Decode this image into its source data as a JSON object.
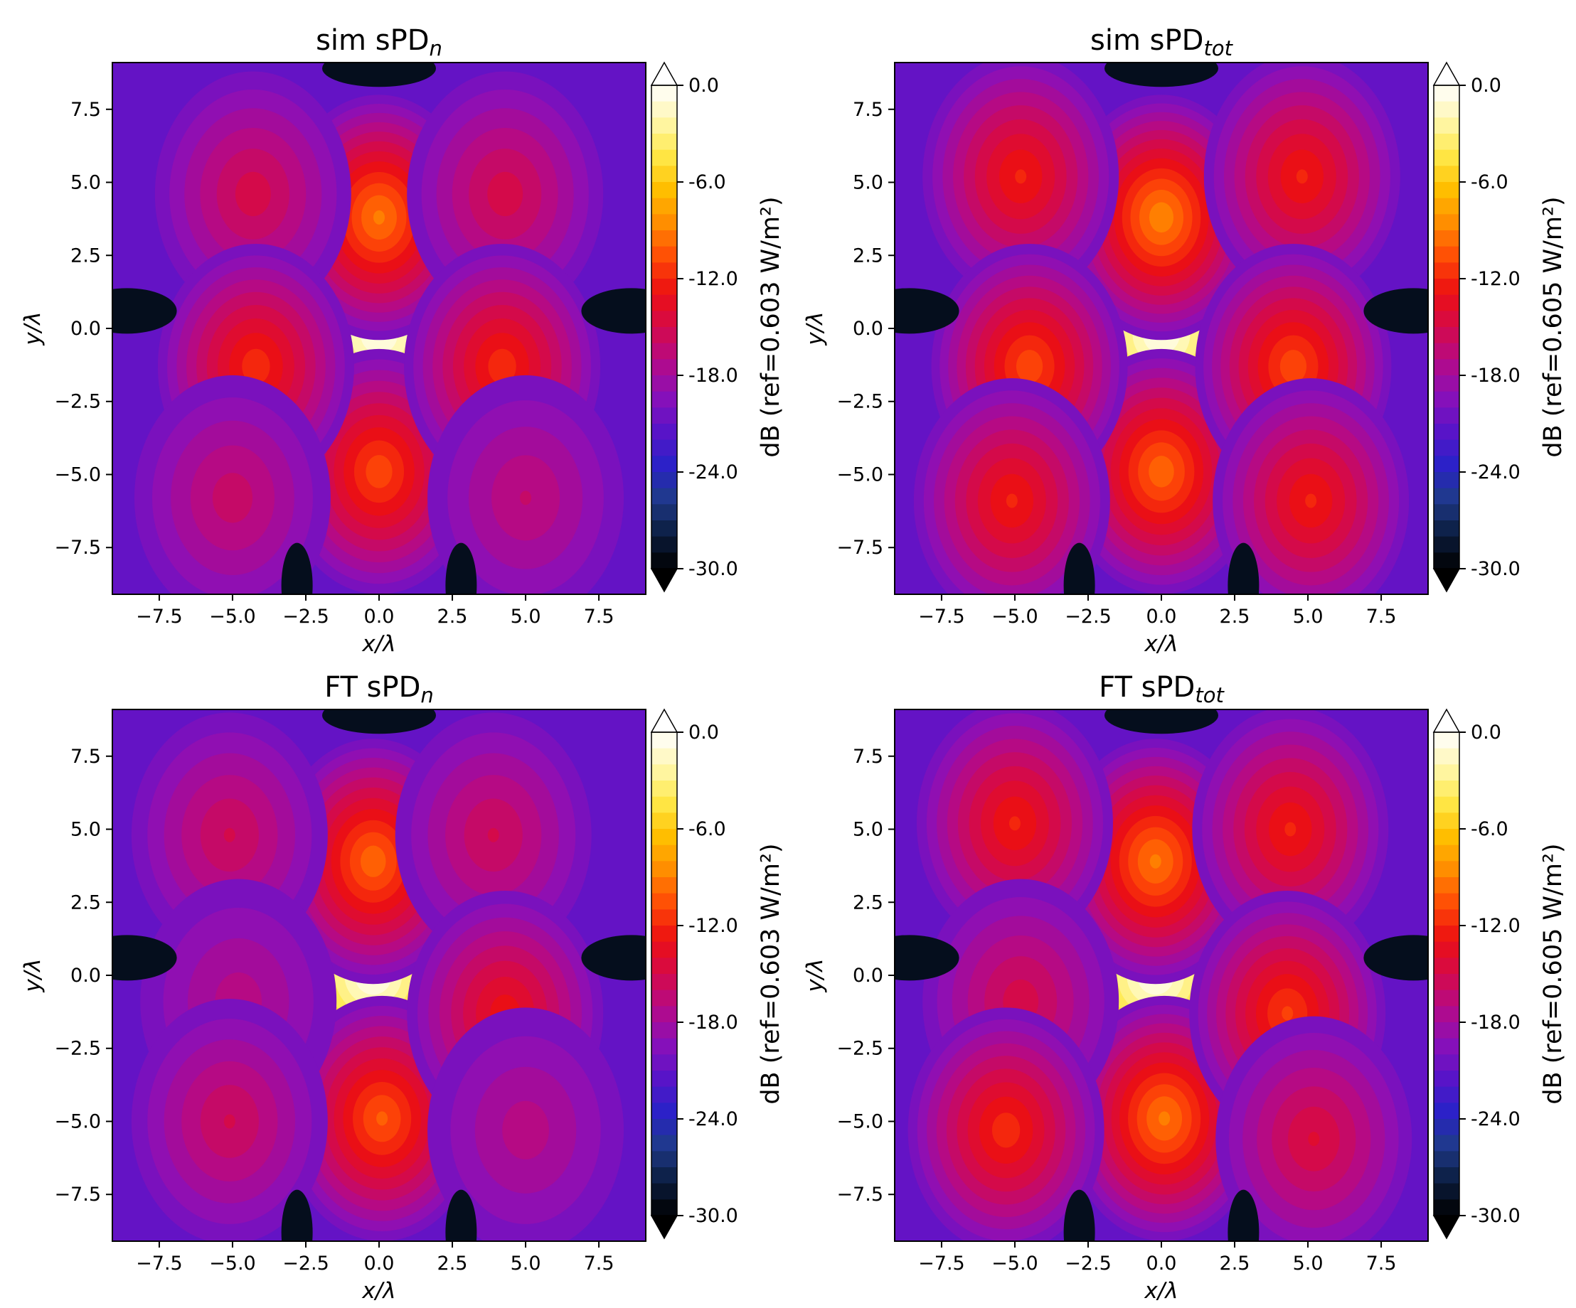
{
  "colors": {
    "colormap": [
      "#000000",
      "#0b1d3f",
      "#1f3a8a",
      "#2a21c8",
      "#5a14c8",
      "#8a10b8",
      "#b40a88",
      "#d40a4a",
      "#ec0f12",
      "#ff4a06",
      "#ff8c00",
      "#ffc000",
      "#ffe94a",
      "#fff7b0",
      "#ffffff"
    ],
    "axes_frame": "#000000"
  },
  "chart_data": [
    {
      "type": "heatmap",
      "title_main": "sim  sPD",
      "title_sub": "n",
      "xlabel": "x/λ",
      "ylabel": "y/λ",
      "xlim": [
        -9.1,
        9.1
      ],
      "ylim": [
        -9.1,
        9.1
      ],
      "xticks": [
        -7.5,
        -5.0,
        -2.5,
        0.0,
        2.5,
        5.0,
        7.5
      ],
      "xtick_labels": [
        "−7.5",
        "−5.0",
        "−2.5",
        "0.0",
        "2.5",
        "5.0",
        "7.5"
      ],
      "yticks": [
        7.5,
        5.0,
        2.5,
        0.0,
        -2.5,
        -5.0,
        -7.5
      ],
      "ytick_labels": [
        "7.5",
        "5.0",
        "2.5",
        "0.0",
        "−2.5",
        "−5.0",
        "−7.5"
      ],
      "colorbar": {
        "label": "dB (ref=0.603 W/m²)",
        "range": [
          -30,
          0
        ],
        "ticks": [
          "0.0",
          "-6.0",
          "-12.0",
          "-18.0",
          "-24.0",
          "-30.0"
        ],
        "extend": "both"
      },
      "features": [
        {
          "x": 0.0,
          "y": -0.2,
          "db": 0.0
        },
        {
          "x": 0.0,
          "y": 3.8,
          "db": -9.0
        },
        {
          "x": 0.0,
          "y": -4.9,
          "db": -10.5
        },
        {
          "x": -4.3,
          "y": 4.6,
          "db": -14.5
        },
        {
          "x": 4.3,
          "y": 4.6,
          "db": -14.5
        },
        {
          "x": -4.2,
          "y": -1.3,
          "db": -11.5
        },
        {
          "x": 4.2,
          "y": -1.3,
          "db": -11.5
        },
        {
          "x": -5.0,
          "y": -5.8,
          "db": -15.5
        },
        {
          "x": 5.0,
          "y": -5.8,
          "db": -16.0
        },
        {
          "x": -2.2,
          "y": 3.1,
          "db": -23.0
        },
        {
          "x": 2.2,
          "y": 3.1,
          "db": -23.0
        }
      ]
    },
    {
      "type": "heatmap",
      "title_main": "sim  sPD",
      "title_sub": "tot",
      "xlabel": "x/λ",
      "ylabel": "y/λ",
      "xlim": [
        -9.1,
        9.1
      ],
      "ylim": [
        -9.1,
        9.1
      ],
      "xticks": [
        -7.5,
        -5.0,
        -2.5,
        0.0,
        2.5,
        5.0,
        7.5
      ],
      "xtick_labels": [
        "−7.5",
        "−5.0",
        "−2.5",
        "0.0",
        "2.5",
        "5.0",
        "7.5"
      ],
      "yticks": [
        7.5,
        5.0,
        2.5,
        0.0,
        -2.5,
        -5.0,
        -7.5
      ],
      "ytick_labels": [
        "7.5",
        "5.0",
        "2.5",
        "0.0",
        "−2.5",
        "−5.0",
        "−7.5"
      ],
      "colorbar": {
        "label": "dB (ref=0.605 W/m²)",
        "range": [
          -30,
          0
        ],
        "ticks": [
          "0.0",
          "-6.0",
          "-12.0",
          "-18.0",
          "-24.0",
          "-30.0"
        ],
        "extend": "both"
      },
      "features": [
        {
          "x": 0.0,
          "y": -0.2,
          "db": 0.0
        },
        {
          "x": 0.0,
          "y": 3.8,
          "db": -8.5
        },
        {
          "x": 0.0,
          "y": -4.9,
          "db": -9.5
        },
        {
          "x": -4.8,
          "y": 5.2,
          "db": -12.0
        },
        {
          "x": 4.8,
          "y": 5.2,
          "db": -12.0
        },
        {
          "x": -4.5,
          "y": -1.3,
          "db": -10.5
        },
        {
          "x": 4.5,
          "y": -1.3,
          "db": -10.5
        },
        {
          "x": -5.1,
          "y": -5.9,
          "db": -12.0
        },
        {
          "x": 5.1,
          "y": -5.9,
          "db": -12.0
        },
        {
          "x": -2.2,
          "y": 3.1,
          "db": -22.0
        },
        {
          "x": 2.2,
          "y": 3.1,
          "db": -22.0
        }
      ]
    },
    {
      "type": "heatmap",
      "title_main": "FT  sPD",
      "title_sub": "n",
      "xlabel": "x/λ",
      "ylabel": "y/λ",
      "xlim": [
        -9.1,
        9.1
      ],
      "ylim": [
        -9.1,
        9.1
      ],
      "xticks": [
        -7.5,
        -5.0,
        -2.5,
        0.0,
        2.5,
        5.0,
        7.5
      ],
      "xtick_labels": [
        "−7.5",
        "−5.0",
        "−2.5",
        "0.0",
        "2.5",
        "5.0",
        "7.5"
      ],
      "yticks": [
        7.5,
        5.0,
        2.5,
        0.0,
        -2.5,
        -5.0,
        -7.5
      ],
      "ytick_labels": [
        "7.5",
        "5.0",
        "2.5",
        "0.0",
        "−2.5",
        "−5.0",
        "−7.5"
      ],
      "colorbar": {
        "label": "dB (ref=0.603 W/m²)",
        "range": [
          -30,
          0
        ],
        "ticks": [
          "0.0",
          "-6.0",
          "-12.0",
          "-18.0",
          "-24.0",
          "-30.0"
        ],
        "extend": "both"
      },
      "features": [
        {
          "x": -0.2,
          "y": 0.0,
          "db": 0.0
        },
        {
          "x": -0.2,
          "y": 3.9,
          "db": -9.5
        },
        {
          "x": 0.1,
          "y": -4.9,
          "db": -10.0
        },
        {
          "x": -5.1,
          "y": 4.8,
          "db": -15.0
        },
        {
          "x": 3.9,
          "y": 4.8,
          "db": -15.0
        },
        {
          "x": -4.8,
          "y": -0.9,
          "db": -16.5
        },
        {
          "x": 4.3,
          "y": -1.3,
          "db": -12.5
        },
        {
          "x": -5.1,
          "y": -5.0,
          "db": -15.0
        },
        {
          "x": 5.0,
          "y": -5.3,
          "db": -16.5
        },
        {
          "x": -2.7,
          "y": 3.2,
          "db": -23.0
        },
        {
          "x": 2.0,
          "y": 3.0,
          "db": -23.0
        }
      ]
    },
    {
      "type": "heatmap",
      "title_main": "FT  sPD",
      "title_sub": "tot",
      "xlabel": "x/λ",
      "ylabel": "y/λ",
      "xlim": [
        -9.1,
        9.1
      ],
      "ylim": [
        -9.1,
        9.1
      ],
      "xticks": [
        -7.5,
        -5.0,
        -2.5,
        0.0,
        2.5,
        5.0,
        7.5
      ],
      "xtick_labels": [
        "−7.5",
        "−5.0",
        "−2.5",
        "0.0",
        "2.5",
        "5.0",
        "7.5"
      ],
      "yticks": [
        7.5,
        5.0,
        2.5,
        0.0,
        -2.5,
        -5.0,
        -7.5
      ],
      "ytick_labels": [
        "7.5",
        "5.0",
        "2.5",
        "0.0",
        "−2.5",
        "−5.0",
        "−7.5"
      ],
      "colorbar": {
        "label": "dB (ref=0.605 W/m²)",
        "range": [
          -30,
          0
        ],
        "ticks": [
          "0.0",
          "-6.0",
          "-12.0",
          "-18.0",
          "-24.0",
          "-30.0"
        ],
        "extend": "both"
      },
      "features": [
        {
          "x": -0.2,
          "y": 0.0,
          "db": 0.0
        },
        {
          "x": -0.2,
          "y": 3.9,
          "db": -9.0
        },
        {
          "x": 0.1,
          "y": -4.9,
          "db": -9.0
        },
        {
          "x": -5.0,
          "y": 5.2,
          "db": -12.0
        },
        {
          "x": 4.4,
          "y": 5.0,
          "db": -12.0
        },
        {
          "x": -4.8,
          "y": -0.9,
          "db": -14.5
        },
        {
          "x": 4.3,
          "y": -1.3,
          "db": -11.0
        },
        {
          "x": -5.3,
          "y": -5.3,
          "db": -11.5
        },
        {
          "x": 5.2,
          "y": -5.6,
          "db": -14.0
        },
        {
          "x": -2.7,
          "y": 3.2,
          "db": -22.0
        },
        {
          "x": 2.0,
          "y": 3.0,
          "db": -22.0
        }
      ]
    }
  ]
}
